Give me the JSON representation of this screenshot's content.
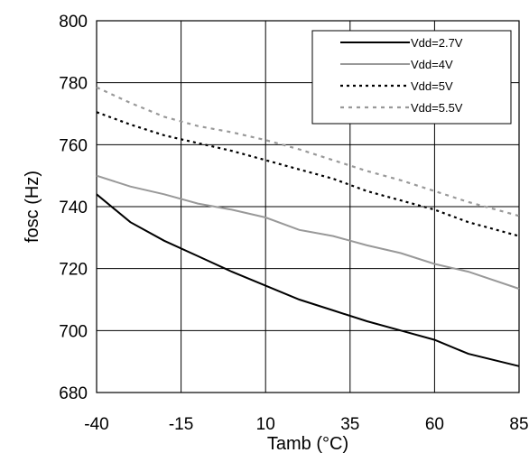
{
  "chart_data": {
    "type": "line",
    "xlabel": "Tamb (°C)",
    "ylabel": "fosc (Hz)",
    "x_ticks": [
      "-40",
      "-15",
      "10",
      "35",
      "60",
      "85"
    ],
    "y_ticks": [
      "680",
      "700",
      "720",
      "740",
      "760",
      "780",
      "800"
    ],
    "xlim": [
      -40,
      85
    ],
    "ylim": [
      680,
      800
    ],
    "grid": true,
    "legend_position": "top-right",
    "series": [
      {
        "name": "Vdd=2.7V",
        "color": "#000000",
        "dash": "solid",
        "x": [
          -40,
          -30,
          -20,
          -10,
          0,
          10,
          20,
          30,
          40,
          50,
          60,
          70,
          85
        ],
        "y": [
          744,
          735,
          729,
          724,
          719,
          714.5,
          710,
          706.5,
          703,
          700,
          697,
          692.5,
          688.5
        ]
      },
      {
        "name": "Vdd=4V",
        "color": "#999999",
        "dash": "solid",
        "x": [
          -40,
          -30,
          -20,
          -10,
          0,
          10,
          20,
          30,
          40,
          50,
          60,
          70,
          85
        ],
        "y": [
          750,
          746.5,
          744,
          741,
          739,
          736.5,
          732.5,
          730.5,
          727.5,
          725,
          721.5,
          719,
          713.5
        ]
      },
      {
        "name": "Vdd=5V",
        "color": "#000000",
        "dash": "dotted",
        "x": [
          -40,
          -30,
          -20,
          -10,
          0,
          10,
          20,
          30,
          40,
          50,
          60,
          70,
          85
        ],
        "y": [
          770.5,
          766.5,
          763,
          760.5,
          758,
          755,
          752,
          749,
          745,
          742,
          739,
          735,
          730.5
        ]
      },
      {
        "name": "Vdd=5.5V",
        "color": "#999999",
        "dash": "dotted",
        "x": [
          -40,
          -30,
          -20,
          -10,
          0,
          10,
          20,
          30,
          40,
          50,
          60,
          70,
          85
        ],
        "y": [
          778.5,
          773.5,
          769,
          766,
          764,
          761.5,
          758.5,
          755,
          751.5,
          748.5,
          745,
          741.5,
          737
        ]
      }
    ]
  }
}
